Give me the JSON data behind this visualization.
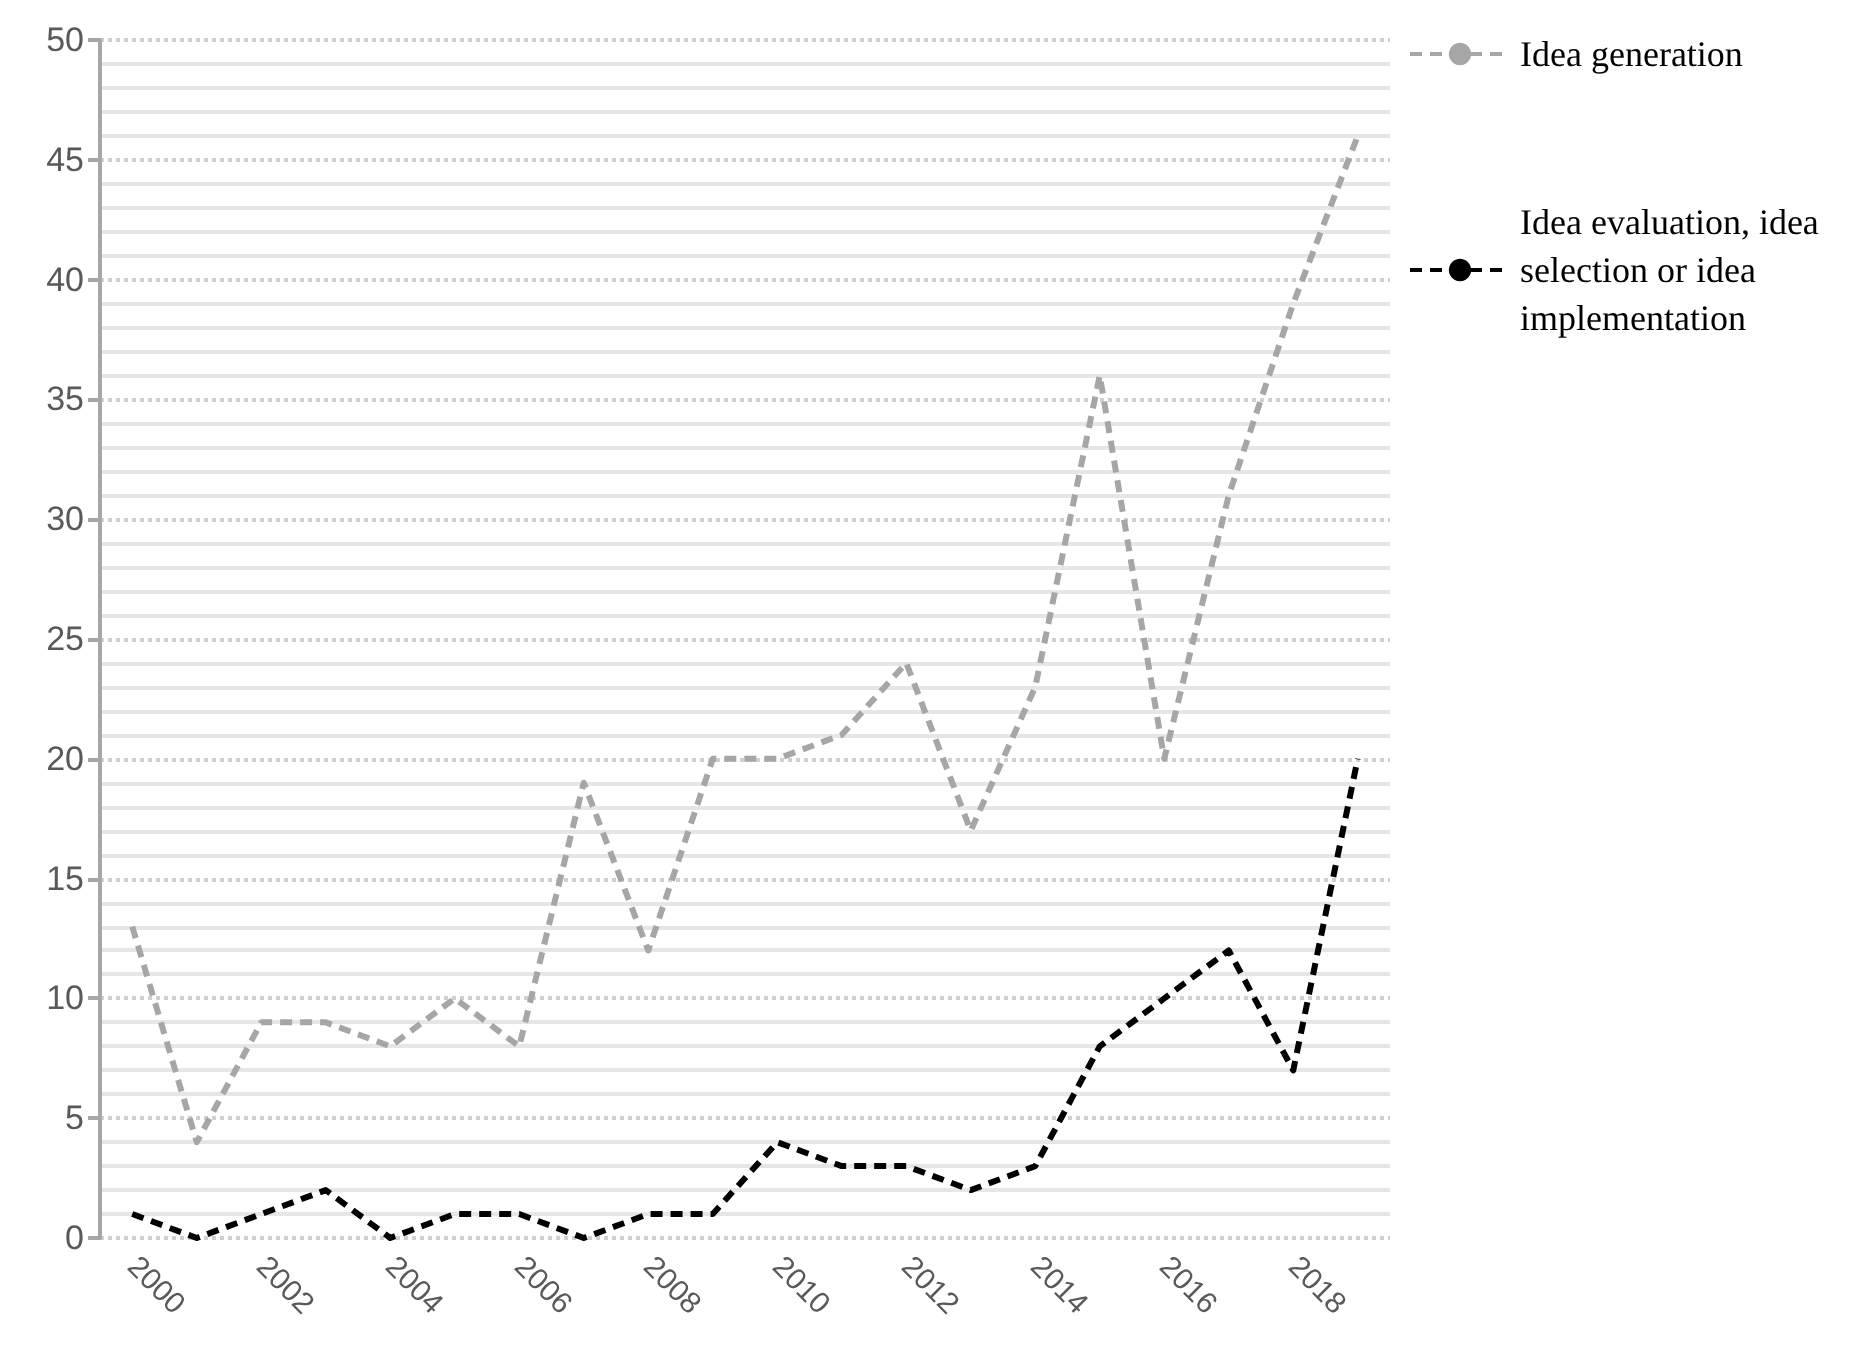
{
  "chart_data": {
    "type": "line",
    "categories": [
      "2000",
      null,
      "2002",
      null,
      "2004",
      null,
      "2006",
      null,
      "2008",
      null,
      "2010",
      null,
      "2012",
      null,
      "2014",
      null,
      "2016",
      null,
      "2018",
      null
    ],
    "series": [
      {
        "name": "Idea generation",
        "color": "#a6a6a6",
        "values": [
          13,
          4,
          9,
          9,
          8,
          10,
          8,
          19,
          12,
          20,
          20,
          21,
          24,
          17,
          23,
          36,
          20,
          31,
          39,
          46
        ]
      },
      {
        "name": "Idea evaluation, idea selection or idea implementation",
        "color": "#000000",
        "values": [
          1,
          0,
          1,
          2,
          0,
          1,
          1,
          0,
          1,
          1,
          4,
          3,
          3,
          2,
          3,
          8,
          10,
          12,
          7,
          20
        ]
      }
    ],
    "ylim": [
      0,
      50
    ],
    "yticks": [
      0,
      5,
      10,
      15,
      20,
      25,
      30,
      35,
      40,
      45,
      50
    ],
    "grid": "y",
    "legend": "right",
    "marker": "none",
    "line_style": "dashed"
  }
}
